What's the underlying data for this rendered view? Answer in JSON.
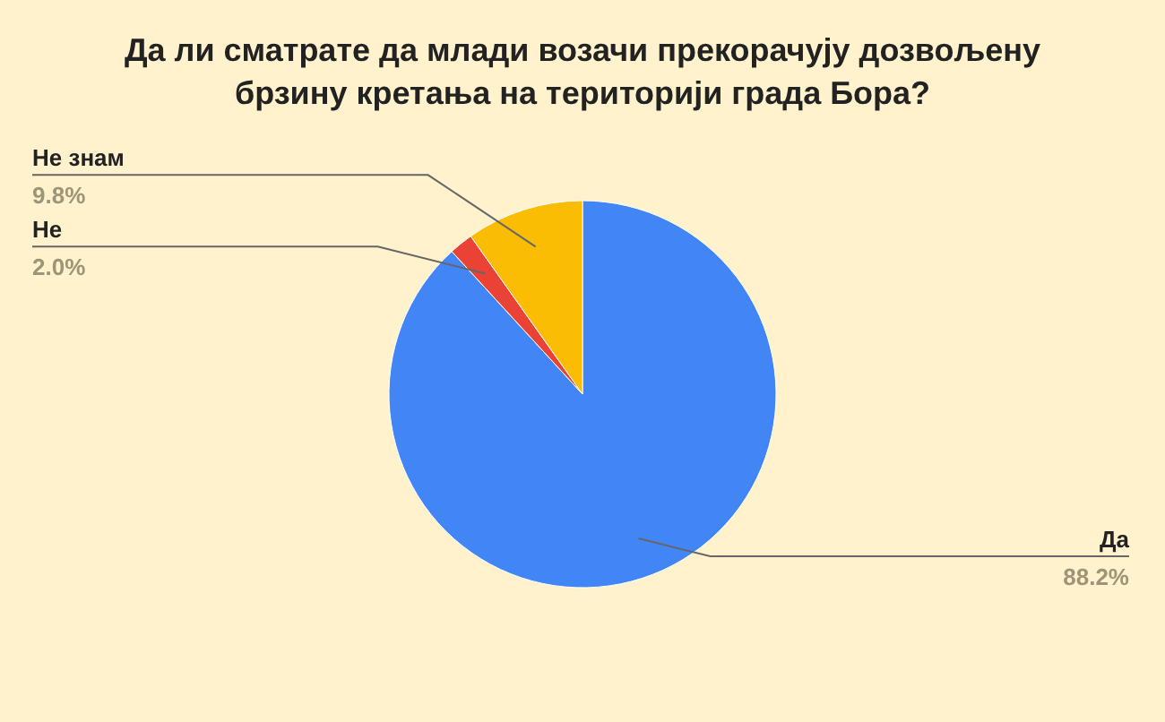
{
  "chart_data": {
    "type": "pie",
    "title": "Да ли сматрате да млади возачи прекорачују дозвољену брзину кретања на територији града Бора?",
    "categories": [
      "Да",
      "Не",
      "Не знам"
    ],
    "values": [
      88.2,
      2.0,
      9.8
    ],
    "colors": [
      "#4285f4",
      "#ea4335",
      "#fbbc04"
    ],
    "value_labels": [
      "88.2%",
      "2.0%",
      "9.8%"
    ]
  }
}
